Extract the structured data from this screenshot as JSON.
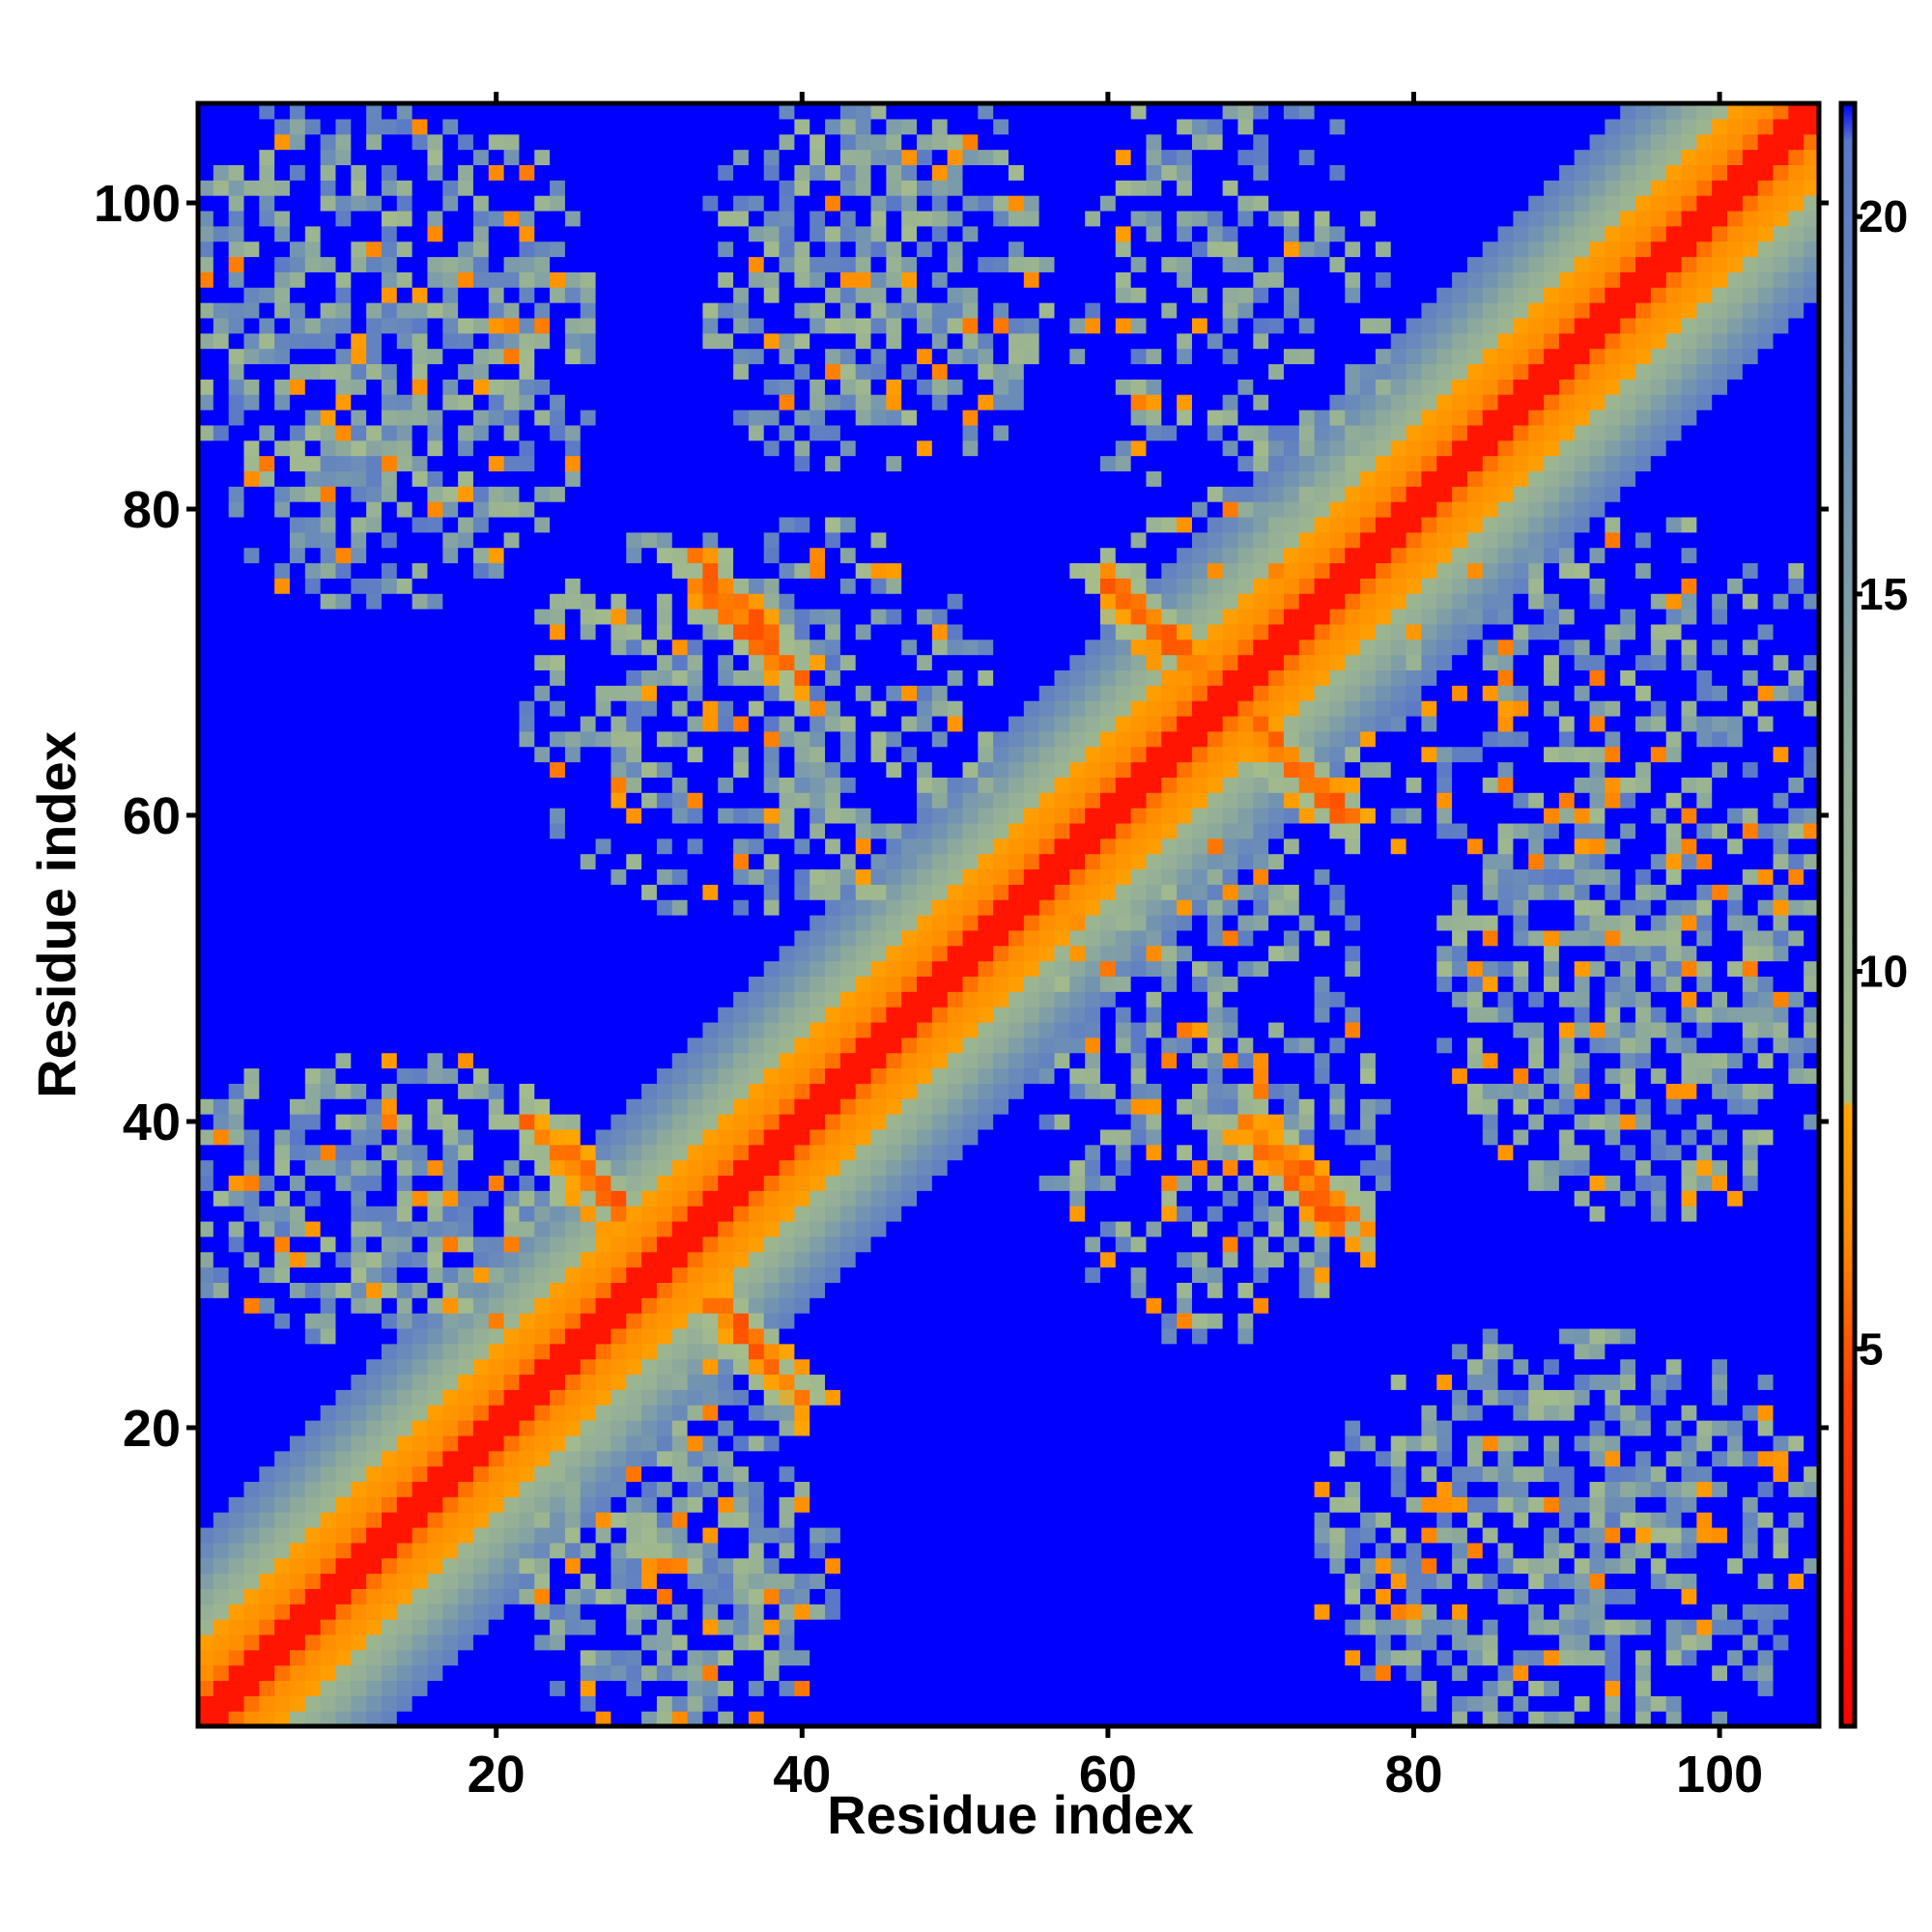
{
  "chart_data": {
    "type": "heatmap",
    "title": "",
    "xlabel": "Residue index",
    "ylabel": "Residue index",
    "n_residues": 106,
    "xlim": [
      0.5,
      106.5
    ],
    "ylim": [
      0.5,
      106.5
    ],
    "x_ticks": [
      20,
      40,
      60,
      80,
      100
    ],
    "y_ticks": [
      20,
      40,
      60,
      80,
      100
    ],
    "colorbar": {
      "ticks": [
        5,
        10,
        15,
        20
      ],
      "range": [
        0,
        21.5
      ],
      "stops": [
        {
          "value": 0,
          "color": "#ff0000"
        },
        {
          "value": 4.5,
          "color": "#ff4000"
        },
        {
          "value": 6.5,
          "color": "#ff8c00"
        },
        {
          "value": 8.2,
          "color": "#ffa500"
        },
        {
          "value": 8.3,
          "color": "#a6bd8a"
        },
        {
          "value": 13,
          "color": "#8fab9a"
        },
        {
          "value": 17,
          "color": "#6d8fb6"
        },
        {
          "value": 21,
          "color": "#5a78c8"
        },
        {
          "value": 21.5,
          "color": "#0000ff"
        }
      ],
      "out_of_range_color": "#0000ff"
    },
    "diagonal_band": {
      "half_width_residues": 12
    },
    "contact_clusters": [
      {
        "x": [
          1,
          24
        ],
        "y": [
          76,
          106
        ],
        "density": 0.7
      },
      {
        "x": [
          1,
          24
        ],
        "y": [
          28,
          42
        ],
        "density": 0.7
      },
      {
        "x": [
          24,
          40
        ],
        "y": [
          1,
          23
        ],
        "density": 0.72
      },
      {
        "x": [
          36,
          54
        ],
        "y": [
          84,
          106
        ],
        "density": 0.68
      },
      {
        "x": [
          24,
          50
        ],
        "y": [
          56,
          77
        ],
        "density": 0.55
      },
      {
        "x": [
          58,
          76
        ],
        "y": [
          28,
          57
        ],
        "density": 0.55
      },
      {
        "x": [
          60,
          76
        ],
        "y": [
          78,
          106
        ],
        "density": 0.45
      },
      {
        "x": [
          76,
          106
        ],
        "y": [
          1,
          24
        ],
        "density": 0.7
      },
      {
        "x": [
          84,
          106
        ],
        "y": [
          36,
          66
        ],
        "density": 0.68
      },
      {
        "x": [
          78,
          106
        ],
        "y": [
          56,
          78
        ],
        "density": 0.45
      }
    ],
    "strands": [
      {
        "x": [
          33,
          40
        ],
        "y": [
          75,
          69
        ]
      },
      {
        "x": [
          60,
          66
        ],
        "y": [
          75,
          69
        ]
      },
      {
        "x": [
          68,
          76
        ],
        "y": [
          67,
          60
        ]
      },
      {
        "x": [
          22,
          28
        ],
        "y": [
          40,
          34
        ]
      },
      {
        "x": [
          70,
          77
        ],
        "y": [
          39,
          33
        ]
      },
      {
        "x": [
          35,
          40
        ],
        "y": [
          28,
          22
        ]
      }
    ]
  }
}
